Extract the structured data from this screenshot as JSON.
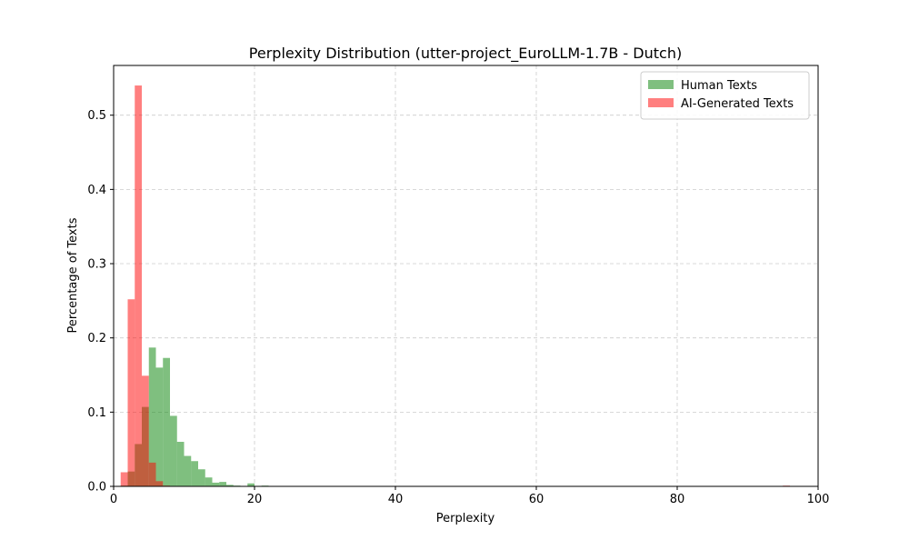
{
  "chart_data": {
    "type": "bar",
    "title": "Perplexity Distribution (utter-project_EuroLLM-1.7B - Dutch)",
    "xlabel": "Perplexity",
    "ylabel": "Percentage of Texts",
    "xlim": [
      0,
      100
    ],
    "ylim": [
      0,
      0.567
    ],
    "xticks": [
      0,
      20,
      40,
      60,
      80,
      100
    ],
    "xtick_labels": [
      "0",
      "20",
      "40",
      "60",
      "80",
      "100"
    ],
    "yticks": [
      0.0,
      0.1,
      0.2,
      0.3,
      0.4,
      0.5
    ],
    "ytick_labels": [
      "0.0",
      "0.1",
      "0.2",
      "0.3",
      "0.4",
      "0.5"
    ],
    "grid": true,
    "legend_position": "top-right",
    "bin_width": 1,
    "series": [
      {
        "name": "Human Texts",
        "color": "#008000",
        "opacity": 0.5,
        "bins": [
          {
            "x0": 1,
            "value": 0.001
          },
          {
            "x0": 2,
            "value": 0.02
          },
          {
            "x0": 3,
            "value": 0.057
          },
          {
            "x0": 4,
            "value": 0.107
          },
          {
            "x0": 5,
            "value": 0.187
          },
          {
            "x0": 6,
            "value": 0.16
          },
          {
            "x0": 7,
            "value": 0.173
          },
          {
            "x0": 8,
            "value": 0.095
          },
          {
            "x0": 9,
            "value": 0.06
          },
          {
            "x0": 10,
            "value": 0.041
          },
          {
            "x0": 11,
            "value": 0.034
          },
          {
            "x0": 12,
            "value": 0.023
          },
          {
            "x0": 13,
            "value": 0.012
          },
          {
            "x0": 14,
            "value": 0.005
          },
          {
            "x0": 15,
            "value": 0.006
          },
          {
            "x0": 16,
            "value": 0.002
          },
          {
            "x0": 17,
            "value": 0.001
          },
          {
            "x0": 19,
            "value": 0.004
          },
          {
            "x0": 21,
            "value": 0.001
          }
        ]
      },
      {
        "name": "AI-Generated Texts",
        "color": "#ff0000",
        "opacity": 0.5,
        "bins": [
          {
            "x0": 1,
            "value": 0.019
          },
          {
            "x0": 2,
            "value": 0.252
          },
          {
            "x0": 3,
            "value": 0.54
          },
          {
            "x0": 4,
            "value": 0.149
          },
          {
            "x0": 5,
            "value": 0.032
          },
          {
            "x0": 6,
            "value": 0.007
          },
          {
            "x0": 7,
            "value": 0.001
          },
          {
            "x0": 95,
            "value": 0.001
          }
        ]
      }
    ]
  }
}
